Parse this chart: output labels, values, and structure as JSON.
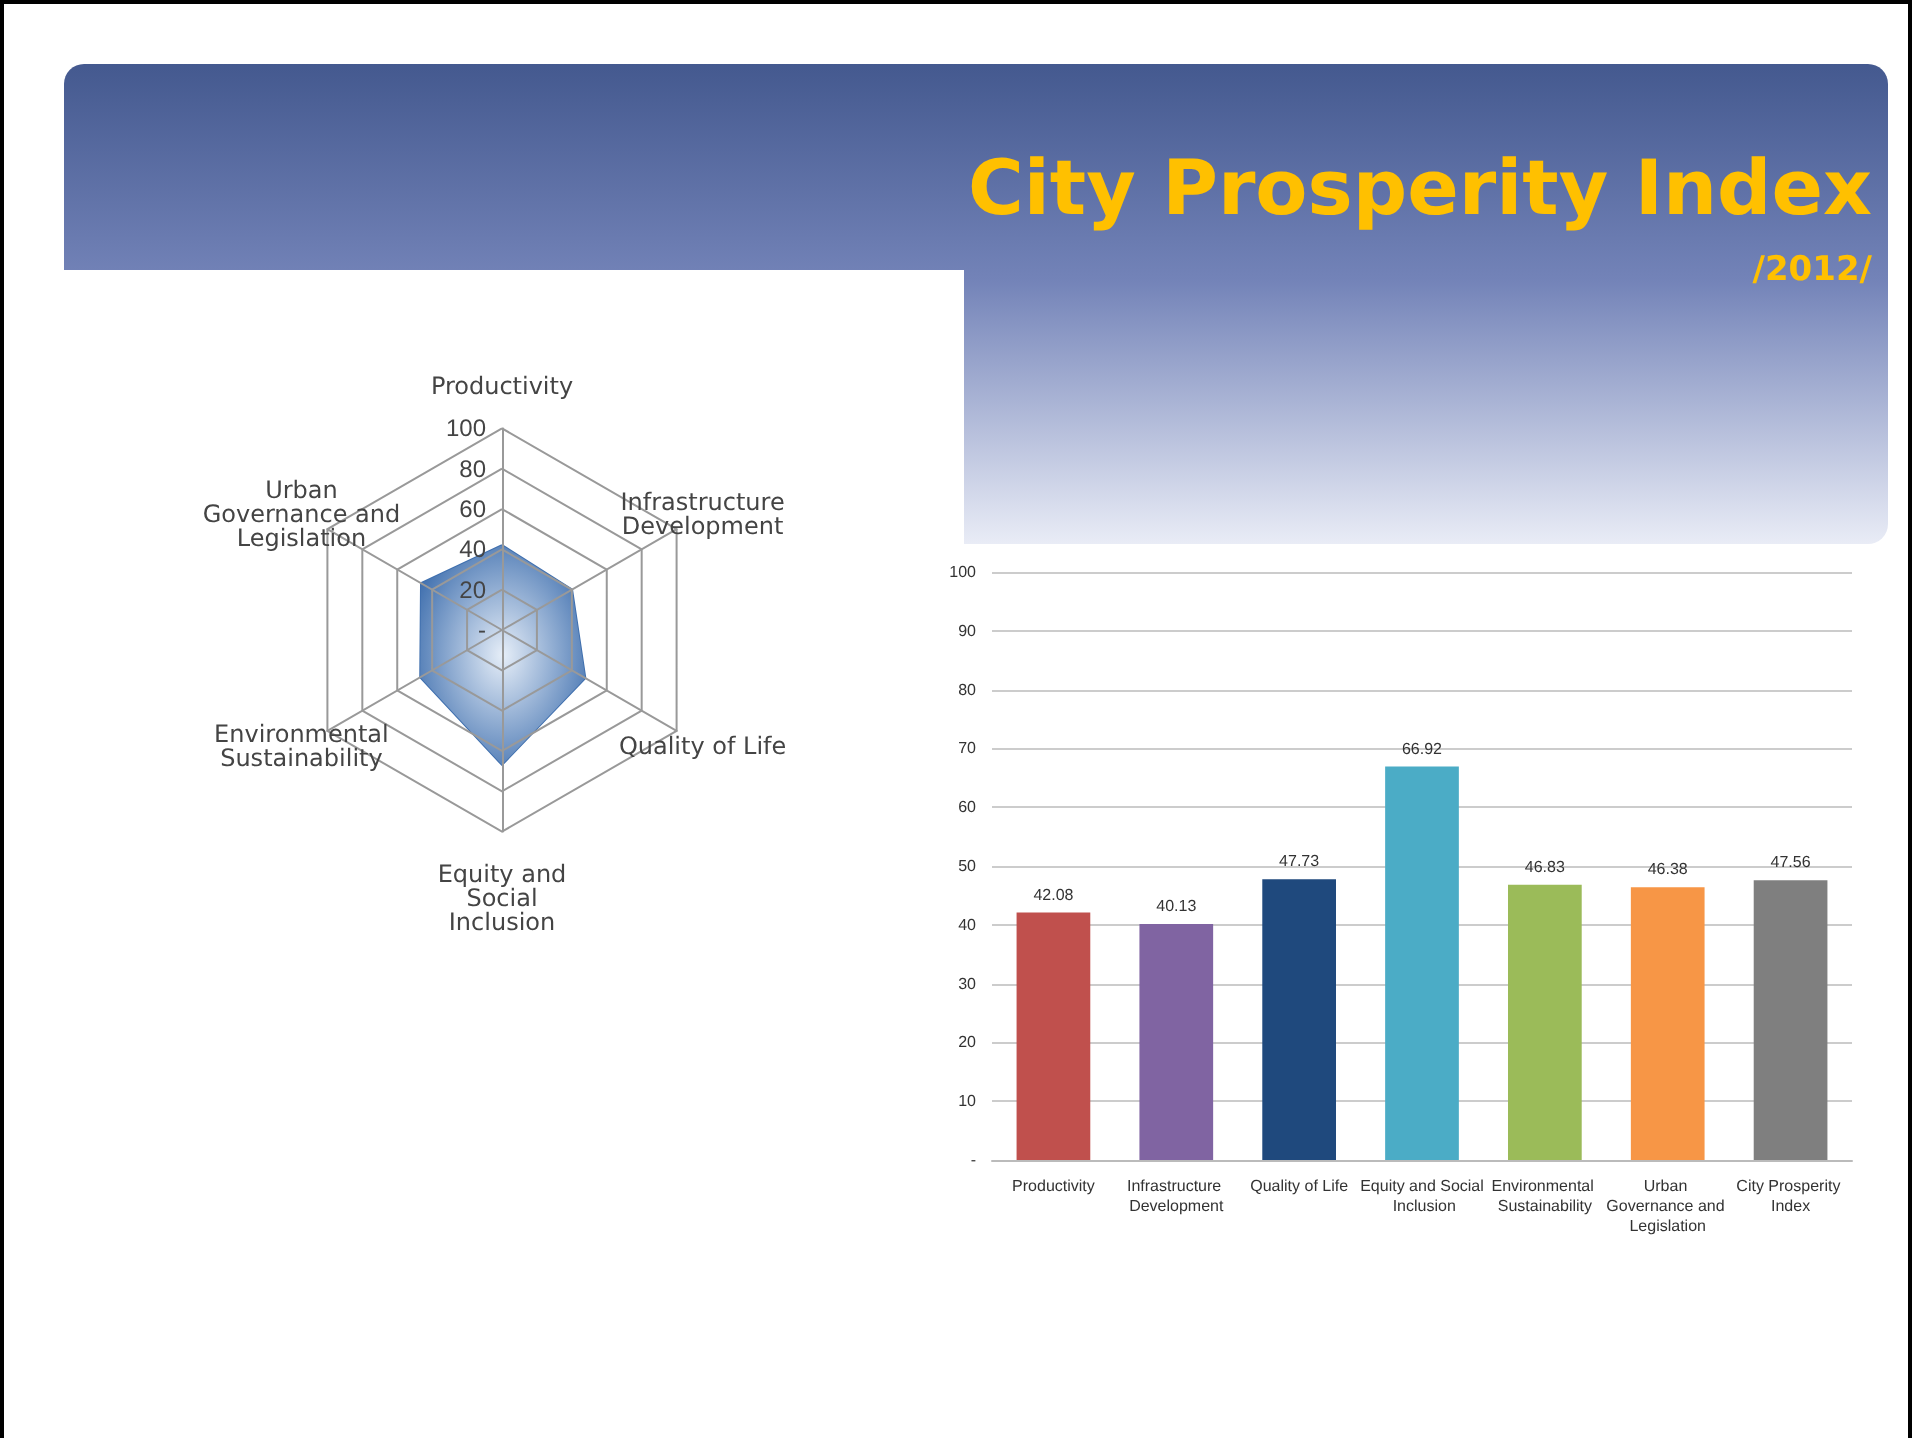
{
  "chart_data": [
    {
      "type": "radar",
      "categories": [
        "Productivity",
        "Infrastructure Development",
        "Quality of Life",
        "Equity and Social Inclusion",
        "Environmental Sustainability",
        "Urban Governance and Legislation"
      ],
      "series": [
        {
          "color": "#3f6fae",
          "values": [
            42.08,
            40.13,
            47.73,
            66.92,
            46.83,
            46.38
          ]
        }
      ],
      "ylim": [
        0,
        100
      ],
      "yticks": [
        {
          "value": 0,
          "label": "-"
        },
        20,
        40,
        60,
        80,
        100
      ]
    },
    {
      "type": "bar",
      "title": "City Prosperity Index",
      "subtitle": "/2012/",
      "categories": [
        "Productivity",
        "Infrastructure Development",
        "Quality of Life",
        "Equity and Social Inclusion",
        "Environmental Sustainability",
        "Urban Governance and Legislation",
        "City Prosperity Index"
      ],
      "values": [
        42.08,
        40.13,
        47.73,
        66.92,
        46.83,
        46.38,
        47.56
      ],
      "colors": [
        "#c0504d",
        "#8064a2",
        "#1f497d",
        "#4bacc6",
        "#9bbb59",
        "#f79646",
        "#7f7f7f"
      ],
      "ylim": [
        0,
        100
      ],
      "yticks": [
        {
          "value": 0,
          "label": "-"
        },
        10,
        20,
        30,
        40,
        50,
        60,
        70,
        80,
        90,
        100
      ],
      "grid": "y",
      "data_labels": true
    }
  ]
}
